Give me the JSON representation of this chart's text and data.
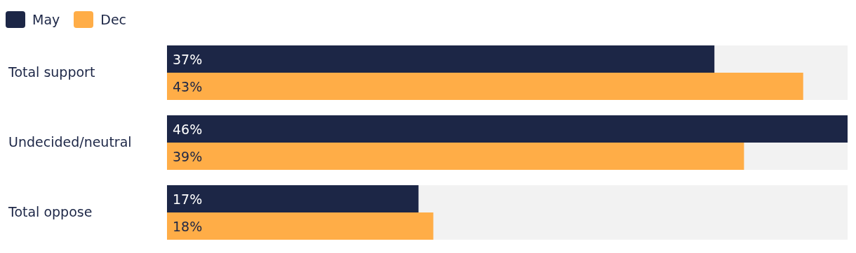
{
  "chart_data": {
    "type": "bar",
    "orientation": "horizontal",
    "categories": [
      "Total support",
      "Undecided/neutral",
      "Total oppose"
    ],
    "series": [
      {
        "name": "May",
        "color": "#1c2646",
        "values": [
          37,
          46,
          17
        ],
        "value_labels": [
          "37%",
          "46%",
          "17%"
        ]
      },
      {
        "name": "Dec",
        "color": "#ffad47",
        "values": [
          43,
          39,
          18
        ],
        "value_labels": [
          "43%",
          "39%",
          "18%"
        ]
      }
    ],
    "xlim": [
      0,
      46
    ],
    "tick_labels": "y",
    "legend": "top left"
  }
}
